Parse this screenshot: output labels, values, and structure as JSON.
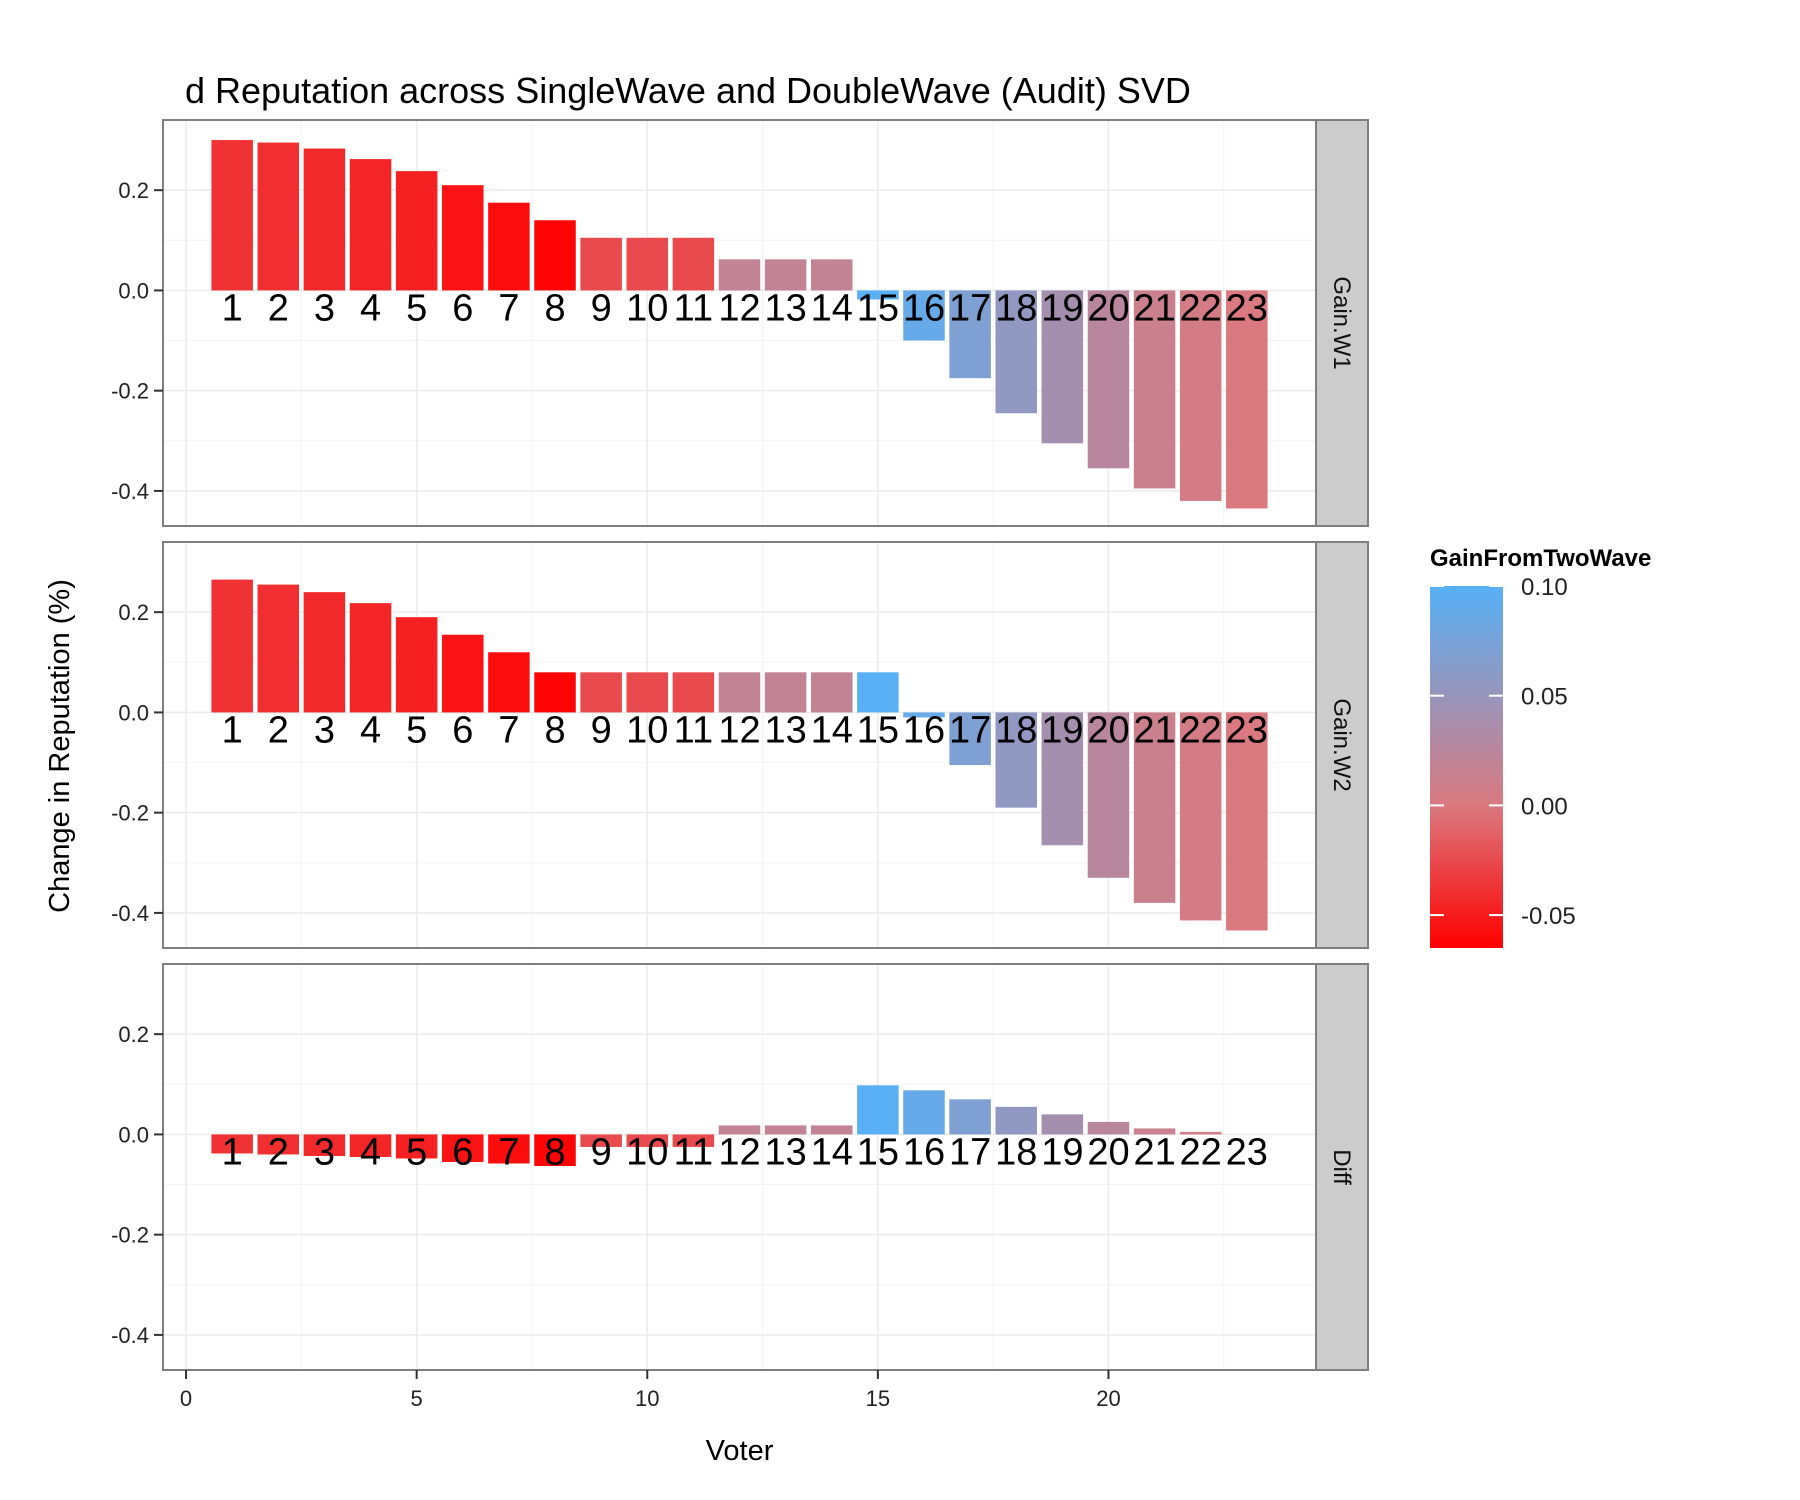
{
  "chart_data": {
    "type": "bar",
    "title": "d Reputation across SingleWave and DoubleWave (Audit) SVD",
    "xlabel": "Voter",
    "ylabel": "Change in Reputation (%)",
    "xlim": [
      -0.5,
      24.5
    ],
    "ylim": [
      -0.47,
      0.34
    ],
    "x_ticks": [
      0,
      5,
      10,
      15,
      20
    ],
    "y_ticks": [
      -0.4,
      -0.2,
      0.0,
      0.2
    ],
    "x_tick_labels": [
      "0",
      "5",
      "10",
      "15",
      "20"
    ],
    "y_tick_labels": [
      "-0.4",
      "-0.2",
      "0.0",
      "0.2"
    ],
    "categories": [
      1,
      2,
      3,
      4,
      5,
      6,
      7,
      8,
      9,
      10,
      11,
      12,
      13,
      14,
      15,
      16,
      17,
      18,
      19,
      20,
      21,
      22,
      23
    ],
    "bar_labels": [
      "1",
      "2",
      "3",
      "4",
      "5",
      "6",
      "7",
      "8",
      "9",
      "10",
      "11",
      "12",
      "13",
      "14",
      "15",
      "16",
      "17",
      "18",
      "19",
      "20",
      "21",
      "22",
      "23"
    ],
    "grid": true,
    "facets": [
      {
        "strip": "Gain.W1",
        "values": [
          0.3,
          0.295,
          0.283,
          0.262,
          0.238,
          0.21,
          0.175,
          0.14,
          0.105,
          0.105,
          0.105,
          0.062,
          0.062,
          0.062,
          -0.018,
          -0.1,
          -0.175,
          -0.245,
          -0.305,
          -0.355,
          -0.395,
          -0.42,
          -0.435
        ]
      },
      {
        "strip": "Gain.W2",
        "values": [
          0.265,
          0.255,
          0.24,
          0.218,
          0.19,
          0.155,
          0.12,
          0.08,
          0.08,
          0.08,
          0.08,
          0.08,
          0.08,
          0.08,
          0.08,
          -0.01,
          -0.105,
          -0.19,
          -0.265,
          -0.33,
          -0.38,
          -0.415,
          -0.435
        ]
      },
      {
        "strip": "Diff",
        "values": [
          -0.038,
          -0.04,
          -0.043,
          -0.045,
          -0.048,
          -0.055,
          -0.058,
          -0.063,
          -0.025,
          -0.025,
          -0.025,
          0.018,
          0.018,
          0.018,
          0.098,
          0.088,
          0.07,
          0.055,
          0.04,
          0.025,
          0.012,
          0.005,
          0.0
        ]
      }
    ],
    "fill_values": [
      -0.038,
      -0.04,
      -0.043,
      -0.045,
      -0.048,
      -0.055,
      -0.058,
      -0.063,
      -0.025,
      -0.025,
      -0.025,
      0.018,
      0.018,
      0.018,
      0.098,
      0.088,
      0.07,
      0.055,
      0.04,
      0.025,
      0.012,
      0.005,
      0.0
    ],
    "legend": {
      "title": "GainFromTwoWave",
      "position": "right",
      "range": [
        -0.065,
        0.1
      ],
      "ticks": [
        0.1,
        0.05,
        0.0,
        -0.05
      ],
      "tick_labels": [
        "0.10",
        "0.05",
        "0.00",
        "-0.05"
      ],
      "low_color": "#ff0000",
      "high_color": "#56b1f7"
    },
    "colors": {
      "panel_border": "#7f7f7f",
      "grid": "#ebebeb",
      "strip_fill": "#cccccc"
    }
  }
}
